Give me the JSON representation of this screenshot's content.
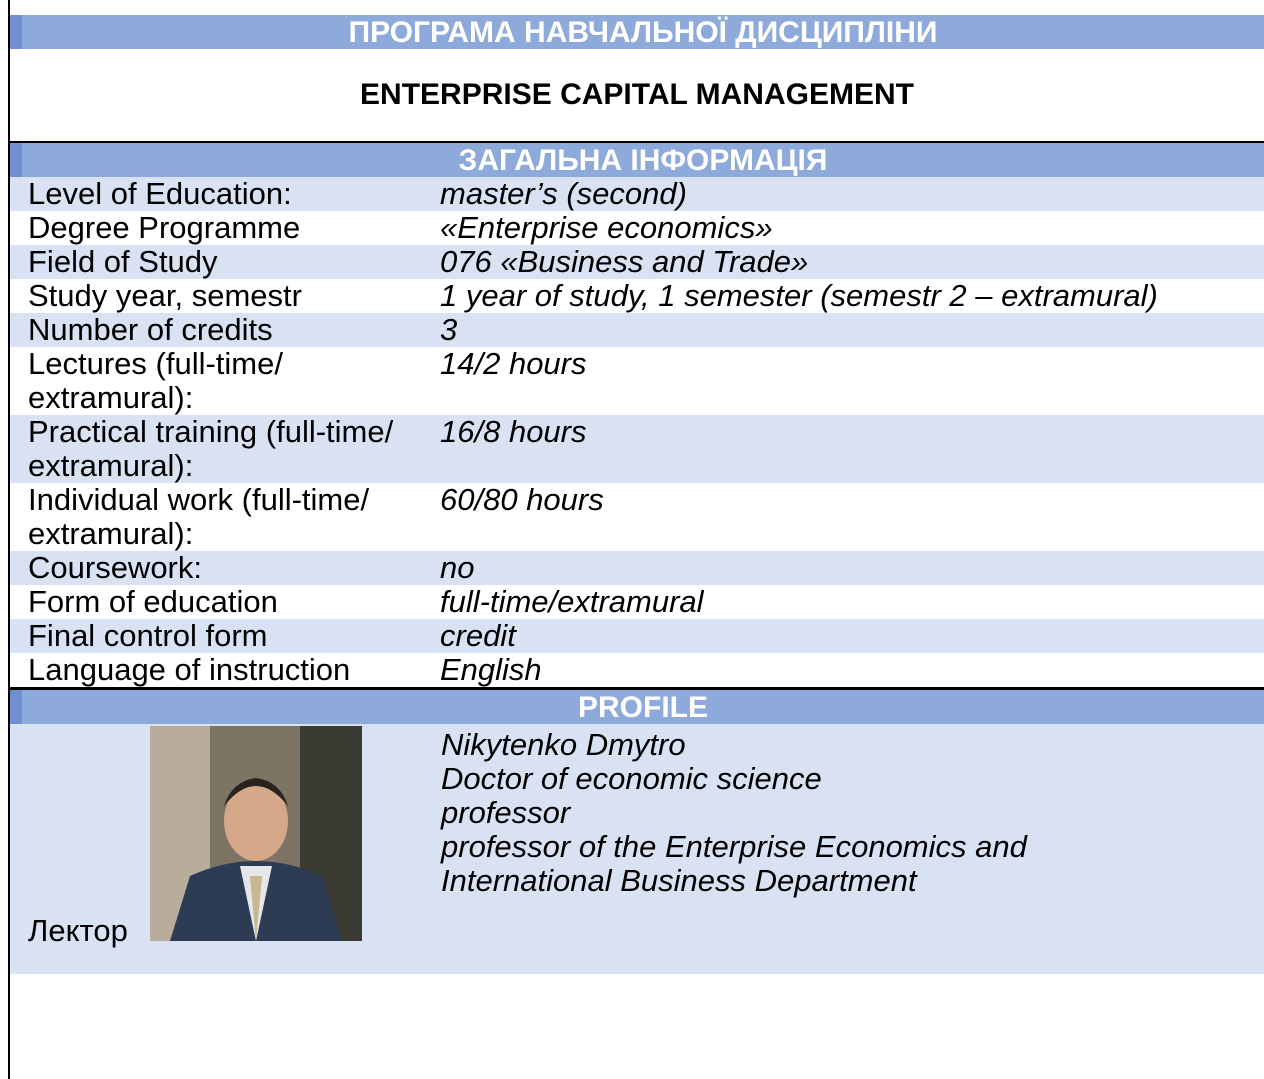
{
  "header": {
    "title": "ПРОГРАМА НАВЧАЛЬНОЇ ДИСЦИПЛІНИ",
    "course": "ENTERPRISE CAPITAL MANAGEMENT"
  },
  "general": {
    "title": "ЗАГАЛЬНА ІНФОРМАЦІЯ",
    "rows": [
      [
        "Level of Education:",
        "master’s (second)"
      ],
      [
        "Degree Programme",
        "«Enterprise economics»"
      ],
      [
        "Field of Study",
        "076 «Business and Trade»"
      ],
      [
        "Study year, semestr",
        "1 year of study, 1 semester (semestr 2 – extramural)"
      ],
      [
        "Number of credits",
        "3"
      ],
      [
        "Lectures (full-time/ extramural):",
        "14/2 hours"
      ],
      [
        "Practical training (full-time/ extramural):",
        "16/8 hours"
      ],
      [
        "Individual work (full-time/ extramural):",
        "60/80 hours"
      ],
      [
        "Coursework:",
        "no"
      ],
      [
        "Form of education",
        "full-time/extramural"
      ],
      [
        "Final control form",
        "credit"
      ],
      [
        "Language of instruction",
        "English"
      ]
    ]
  },
  "profile": {
    "title": "PROFILE",
    "role": "Лектор",
    "lines": [
      "Nikytenko Dmytro",
      "Doctor of economic science",
      "professor",
      "professor of the Enterprise Economics and International Business Department"
    ]
  }
}
